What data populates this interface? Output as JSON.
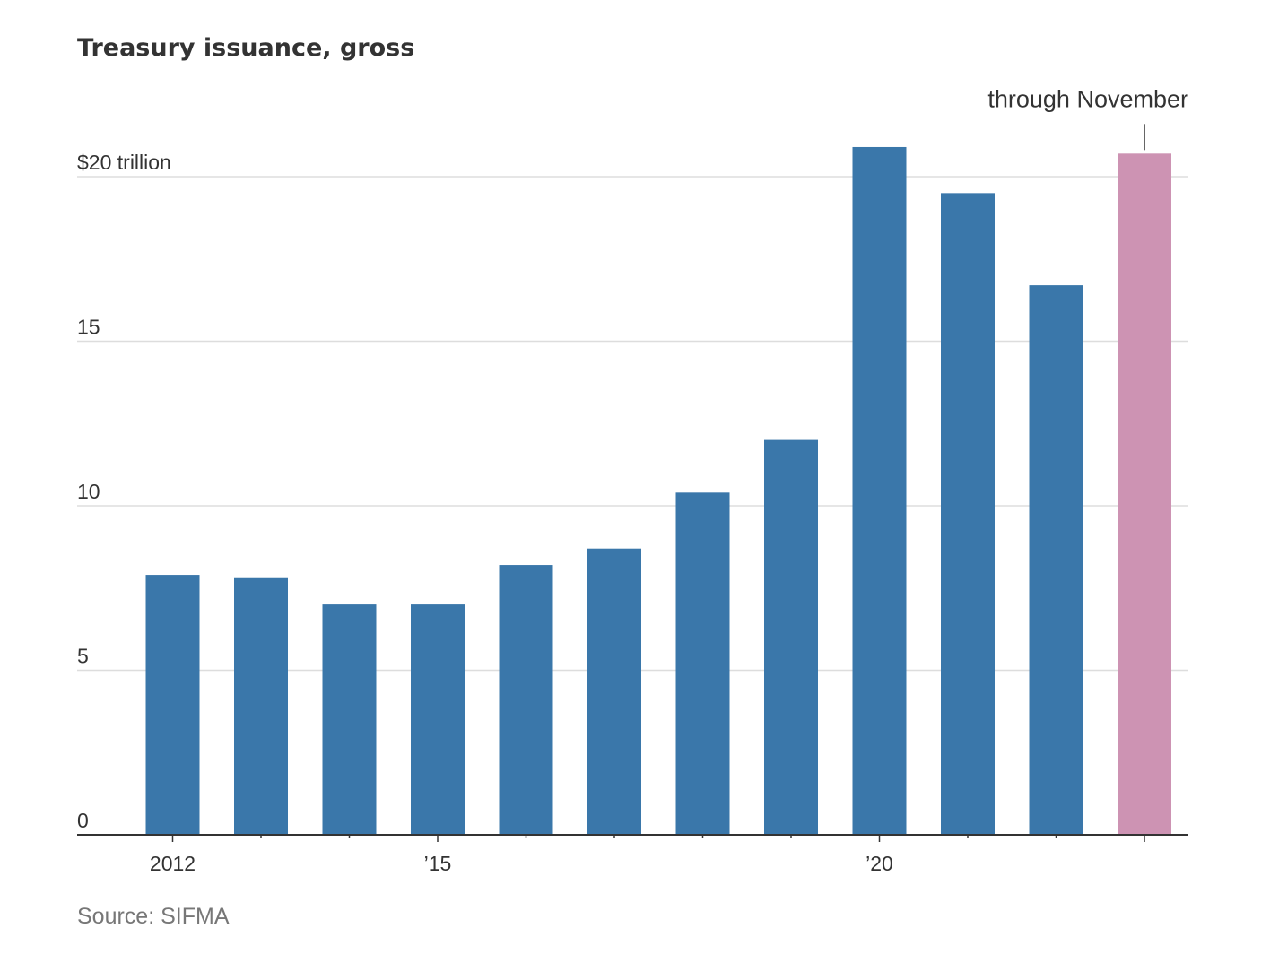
{
  "chart_data": {
    "type": "bar",
    "title": "Treasury issuance, gross",
    "source": "Source: SIFMA",
    "x": [
      2012,
      2013,
      2014,
      2015,
      2016,
      2017,
      2018,
      2019,
      2020,
      2021,
      2022,
      2023
    ],
    "values": [
      7.9,
      7.8,
      7.0,
      7.0,
      8.2,
      8.7,
      10.4,
      12.0,
      20.9,
      19.5,
      16.7,
      20.7
    ],
    "highlight_index": 11,
    "colors": {
      "bar": "#3a77aa",
      "highlight": "#cd93b3",
      "grid": "#dddddd",
      "axis": "#333333"
    },
    "ylim": [
      0,
      20.9
    ],
    "y_ticks": [
      0,
      5,
      10,
      15,
      20
    ],
    "y_tick_labels": [
      "0",
      "5",
      "10",
      "15",
      "$20 trillion"
    ],
    "x_tick_labels": [
      {
        "year": 2012,
        "label": "2012"
      },
      {
        "year": 2015,
        "label": "’15"
      },
      {
        "year": 2020,
        "label": "’20"
      }
    ],
    "annotation": {
      "year": 2023,
      "text": "through November"
    },
    "xlabel": "",
    "ylabel": "",
    "grid": true
  }
}
